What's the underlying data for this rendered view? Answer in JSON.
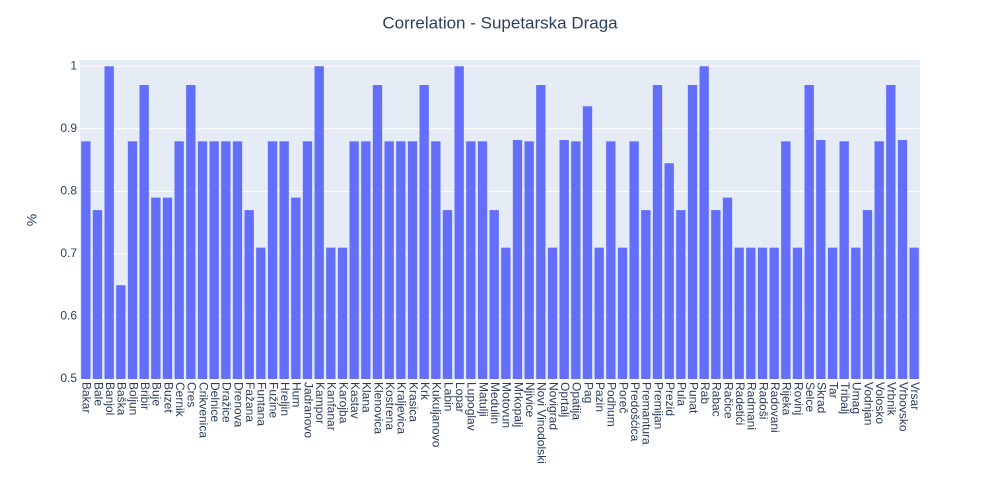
{
  "chart_data": {
    "type": "bar",
    "title": "Correlation - Supetarska Draga",
    "ylabel": "%",
    "categories": [
      "Bakar",
      "Bale",
      "Banjol",
      "Baška",
      "Boljun",
      "Bribir",
      "Buje",
      "Buzet",
      "Cernik",
      "Cres",
      "Crikvenica",
      "Delnice",
      "Dražice",
      "Drenova",
      "Fažana",
      "Funtana",
      "Fužine",
      "Hreljin",
      "Hum",
      "Jadranovo",
      "Kampor",
      "Kanfanar",
      "Karojba",
      "Kastav",
      "Klana",
      "Klenovica",
      "Kostrena",
      "Kraljevica",
      "Krasica",
      "Krk",
      "Kukuljanovo",
      "Labin",
      "Lopar",
      "Lupoglav",
      "Matulji",
      "Medulin",
      "Motovun",
      "Mrkopalj",
      "Njivice",
      "Novi Vinodolski",
      "Novigrad",
      "Oprtalj",
      "Opatija",
      "Pag",
      "Pazin",
      "Podhum",
      "Poreč",
      "Predošćica",
      "Premantura",
      "Premijan",
      "Prezid",
      "Pula",
      "Punat",
      "Rab",
      "Rabac",
      "Račice",
      "Radetići",
      "Radmani",
      "Radoši",
      "Radovani",
      "Rijeka",
      "Rovinj",
      "Selce",
      "Skrad",
      "Tar",
      "Tribalj",
      "Umag",
      "Vodnjan",
      "Volosko",
      "Vrbnik",
      "Vrbovsko",
      "Vrsar"
    ],
    "values": [
      0.88,
      0.77,
      1,
      0.65,
      0.88,
      0.97,
      0.79,
      0.79,
      0.88,
      0.97,
      0.88,
      0.88,
      0.88,
      0.88,
      0.77,
      0.71,
      0.88,
      0.88,
      0.79,
      0.88,
      1,
      0.71,
      0.71,
      0.88,
      0.88,
      0.97,
      0.88,
      0.88,
      0.88,
      0.97,
      0.88,
      0.77,
      1,
      0.88,
      0.88,
      0.77,
      0.71,
      0.882,
      0.88,
      0.97,
      0.71,
      0.882,
      0.88,
      0.936,
      0.71,
      0.88,
      0.71,
      0.88,
      0.77,
      0.97,
      0.845,
      0.77,
      0.97,
      1,
      0.77,
      0.79,
      0.71,
      0.71,
      0.71,
      0.71,
      0.88,
      0.71,
      0.97,
      0.882,
      0.71,
      0.88,
      0.71,
      0.77,
      0.88,
      0.97,
      0.882,
      0.71
    ],
    "color": "#636efa",
    "ylim": [
      0.5,
      1.01
    ],
    "yticks": [
      0.5,
      0.6,
      0.7,
      0.8,
      0.9,
      1
    ],
    "grid": true
  }
}
